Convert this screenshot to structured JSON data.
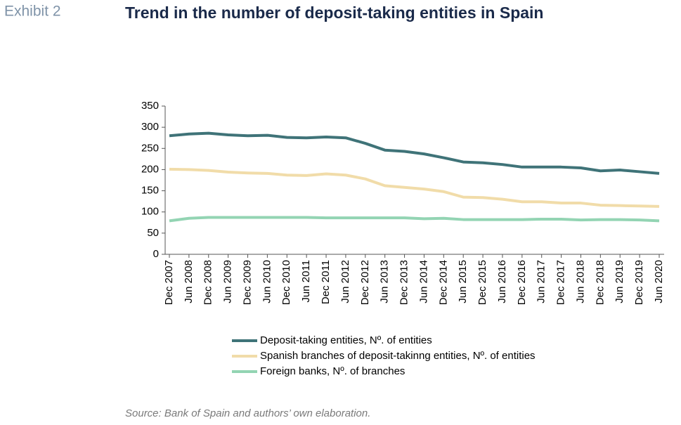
{
  "exhibit": "Exhibit 2",
  "source": "Source: Bank of Spain and authors’ own elaboration.",
  "chart_data": {
    "type": "line",
    "title": "Trend in the number of deposit-taking entities in Spain",
    "categories": [
      "Dec 2007",
      "Jun 2008",
      "Dec 2008",
      "Jun 2009",
      "Dec 2009",
      "Jun 2010",
      "Dec 2010",
      "Jun 2011",
      "Dec 2011",
      "Jun 2012",
      "Dec 2012",
      "Jun 2013",
      "Dec 2013",
      "Jun 2014",
      "Dec 2014",
      "Jun 2015",
      "Dec 2015",
      "Jun 2016",
      "Dec 2016",
      "Jun 2017",
      "Dec 2017",
      "Jun 2018",
      "Dec 2018",
      "Jun 2019",
      "Dec 2019",
      "Jun 2020"
    ],
    "series": [
      {
        "name": "Deposit-taking entities, Nº. of entities",
        "color": "#3f7378",
        "values": [
          280,
          284,
          286,
          282,
          280,
          281,
          276,
          275,
          277,
          275,
          262,
          246,
          243,
          237,
          228,
          218,
          216,
          212,
          206,
          206,
          206,
          204,
          197,
          199,
          195,
          191
        ]
      },
      {
        "name": "Spanish branches of deposit-takinng entities, Nº. of entities",
        "color": "#f1dca9",
        "values": [
          201,
          200,
          198,
          194,
          192,
          191,
          187,
          186,
          190,
          187,
          178,
          162,
          158,
          154,
          148,
          135,
          134,
          130,
          124,
          124,
          121,
          121,
          116,
          115,
          114,
          113
        ]
      },
      {
        "name": "Foreign banks, Nº. of branches",
        "color": "#93d4b3",
        "values": [
          79,
          85,
          87,
          87,
          87,
          87,
          87,
          87,
          86,
          86,
          86,
          86,
          86,
          84,
          85,
          82,
          82,
          82,
          82,
          83,
          83,
          81,
          82,
          82,
          81,
          79
        ]
      }
    ],
    "ylim": [
      0,
      350
    ],
    "yticks": [
      0,
      50,
      100,
      150,
      200,
      250,
      300,
      350
    ],
    "legend": "bottom"
  }
}
